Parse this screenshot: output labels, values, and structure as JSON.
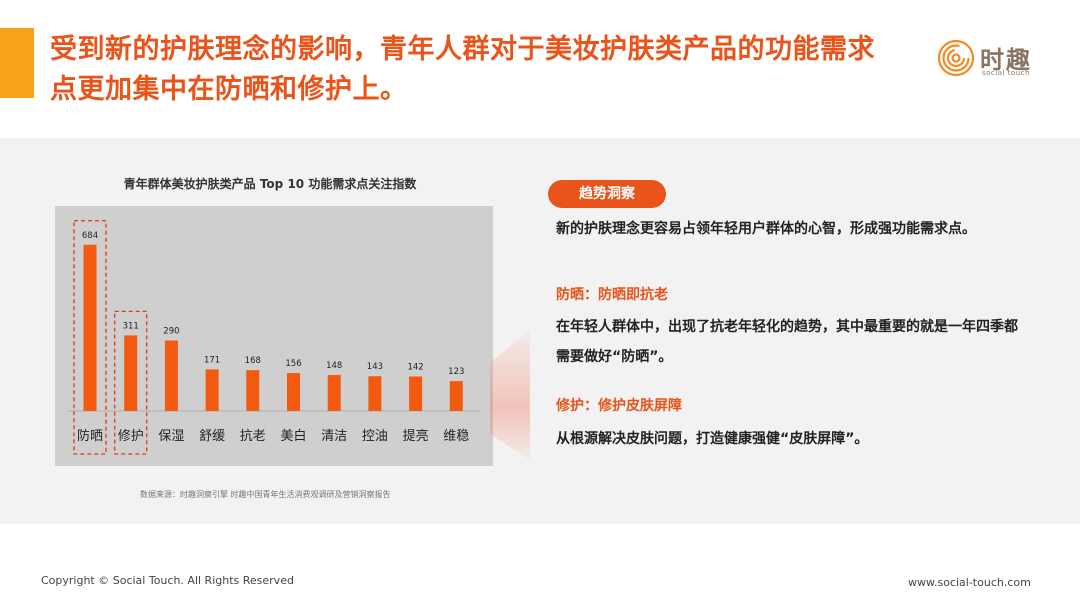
{
  "title": "受到新的护肤理念的影响，青年人群对于美妆护肤类产品的功能需求点更加集中在防晒和修护上。",
  "logo": {
    "name": "时趣",
    "tagline": "social touch"
  },
  "chart_data": {
    "type": "bar",
    "title": "青年群体美妆护肤类产品 Top 10 功能需求点关注指数",
    "categories": [
      "防晒",
      "修护",
      "保湿",
      "舒缓",
      "抗老",
      "美白",
      "清洁",
      "控油",
      "提亮",
      "维稳"
    ],
    "values": [
      684,
      311,
      290,
      171,
      168,
      156,
      148,
      143,
      142,
      123
    ],
    "highlighted": [
      "防晒",
      "修护"
    ],
    "ylim": [
      0,
      720
    ],
    "bar_color": "#f15a0f",
    "background_color": "#cfcfcf",
    "grid": false,
    "legend": "none"
  },
  "source": "数据来源：时趣洞察引擎 时趣中国青年生活消费观调研及营销洞察报告",
  "insight": {
    "badge": "趋势洞察",
    "intro": "新的护肤理念更容易占领年轻用户群体的心智，形成强功能需求点。",
    "points": [
      {
        "heading": "防晒：防晒即抗老",
        "text": "在年轻人群体中，出现了抗老年轻化的趋势，其中最重要的就是一年四季都需要做好“防晒”。"
      },
      {
        "heading": "修护：修护皮肤屏障",
        "text": "从根源解决皮肤问题，打造健康强健“皮肤屏障”。"
      }
    ]
  },
  "footer": {
    "copyright": "Copyright © Social Touch. All Rights Reserved",
    "website": "www.social-touch.com"
  },
  "colors": {
    "accent": "#e8541a",
    "accent_bar": "#f7a21b",
    "logo": "#8a7363"
  }
}
